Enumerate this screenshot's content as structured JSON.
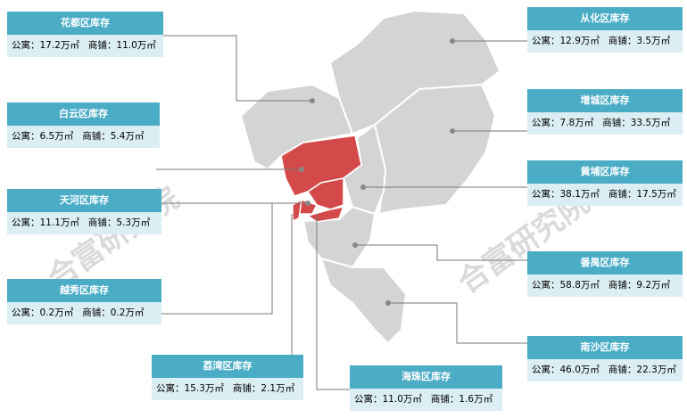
{
  "districts": [
    {
      "title": "花都区库存",
      "apartment": "公寓：17.2万㎡",
      "shop": "商铺：11.0万㎡"
    },
    {
      "title": "白云区库存",
      "apartment": "公寓：6.5万㎡",
      "shop": "商铺：5.4万㎡"
    },
    {
      "title": "天河区库存",
      "apartment": "公寓：11.1万㎡",
      "shop": "商铺：5.3万㎡"
    },
    {
      "title": "越秀区库存",
      "apartment": "公寓：0.2万㎡",
      "shop": "商铺：0.2万㎡"
    },
    {
      "title": "荔湾区库存",
      "apartment": "公寓：15.3万㎡",
      "shop": "商铺：2.1万㎡"
    },
    {
      "title": "海珠区库存",
      "apartment": "公寓：11.0万㎡",
      "shop": "商铺：1.6万㎡"
    },
    {
      "title": "从化区库存",
      "apartment": "公寓：12.9万㎡",
      "shop": "商铺：3.5万㎡"
    },
    {
      "title": "增城区库存",
      "apartment": "公寓：7.8万㎡",
      "shop": "商铺：33.5万㎡"
    },
    {
      "title": "黄埔区库存",
      "apartment": "公寓：38.1万㎡",
      "shop": "商铺：17.5万㎡"
    },
    {
      "title": "番禺区库存",
      "apartment": "公寓：58.8万㎡",
      "shop": "商铺：9.2万㎡"
    },
    {
      "title": "南沙区库存",
      "apartment": "公寓：46.0万㎡",
      "shop": "商铺：22.3万㎡"
    }
  ],
  "watermark": [
    "合富研究院",
    "合富研究院"
  ]
}
